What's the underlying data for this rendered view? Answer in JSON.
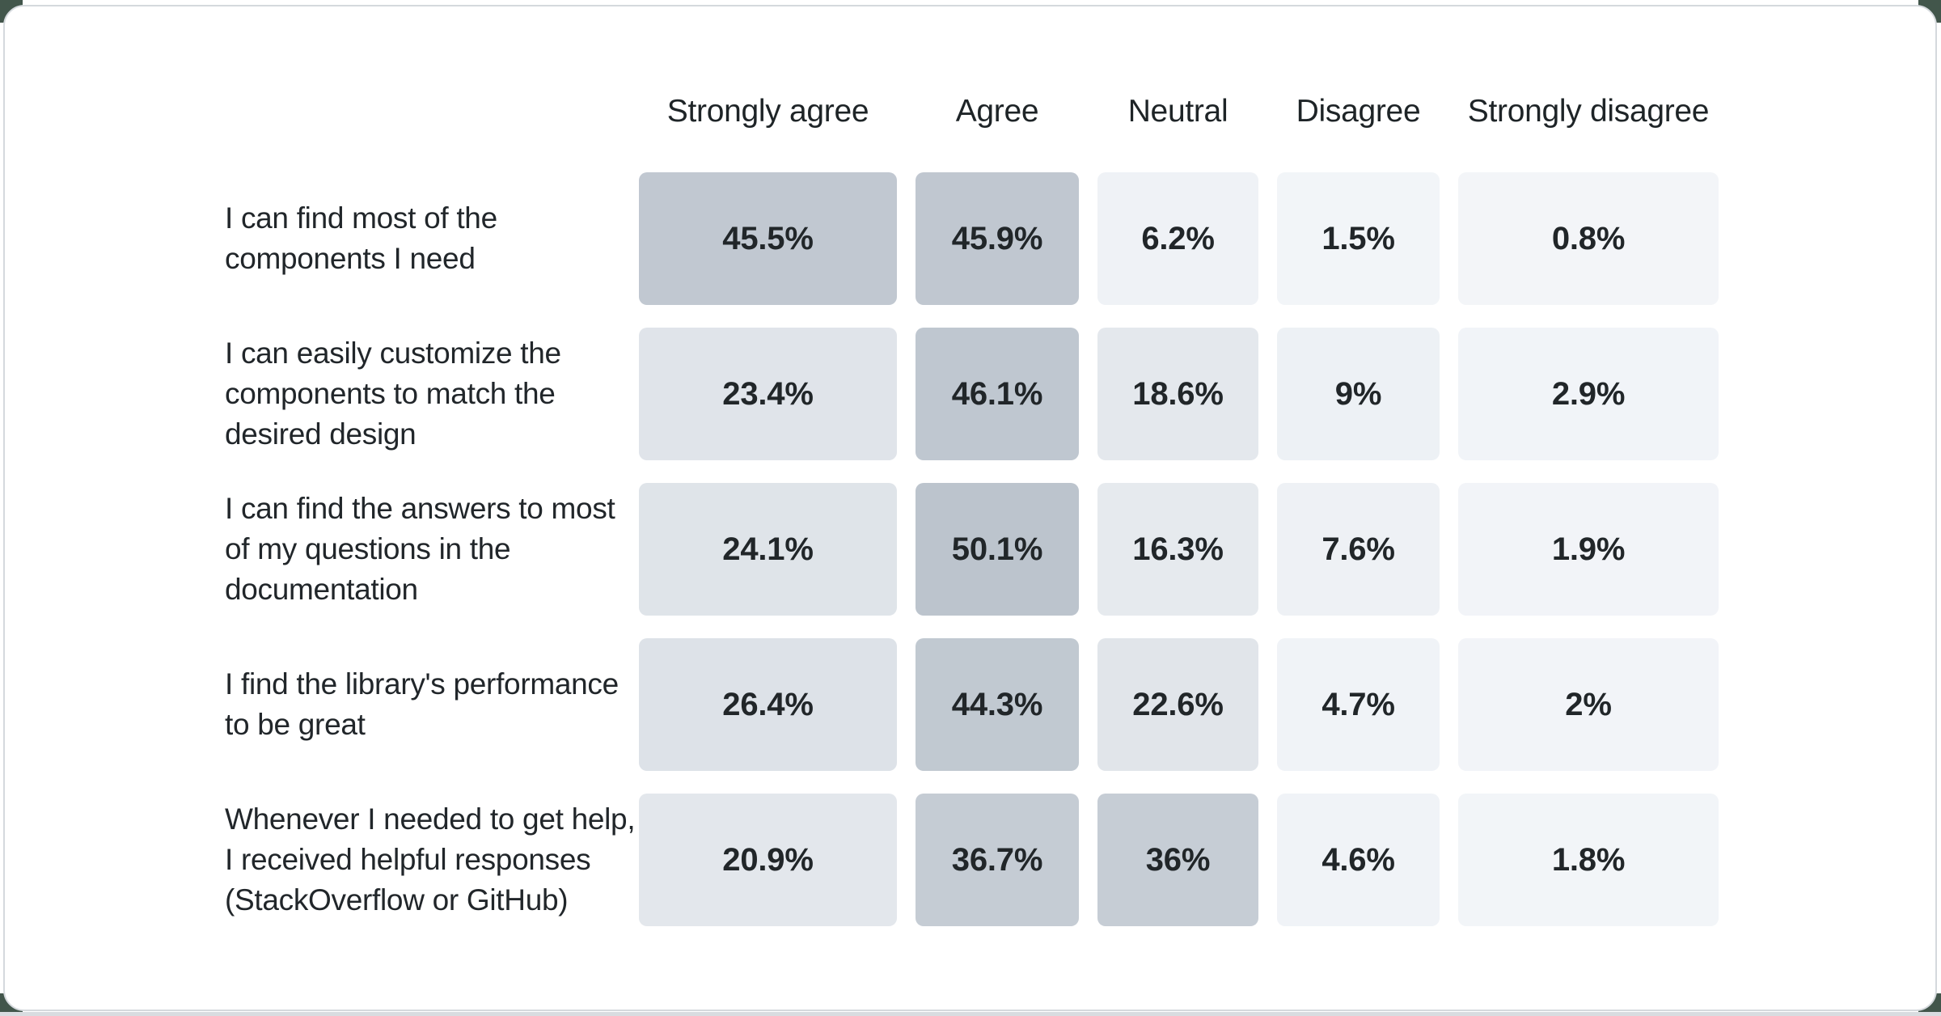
{
  "page": {
    "backdrop_color": "#42564b",
    "bottom_strip_color": "#d9dce0",
    "card_background": "#ffffff",
    "card_border_color": "#d5d9dd"
  },
  "chart_data": {
    "type": "heatmap",
    "title": "",
    "description": "Likert-scale survey results table; cell shading is proportional to the percentage value",
    "legend_position": "none",
    "grid": "off",
    "columns": [
      "Strongly agree",
      "Agree",
      "Neutral",
      "Disagree",
      "Strongly disagree"
    ],
    "scale": {
      "low_color": "#f3f5f8",
      "high_color": "#bcc4cd"
    },
    "rows": [
      {
        "label": "I can find most of the\ncomponents I need",
        "values": [
          45.5,
          45.9,
          6.2,
          1.5,
          0.8
        ],
        "display": [
          "45.5%",
          "45.9%",
          "6.2%",
          "1.5%",
          "0.8%"
        ],
        "colors": [
          "#c1c8d1",
          "#c0c7d0",
          "#eff2f6",
          "#f2f5f8",
          "#f3f5f8"
        ]
      },
      {
        "label": "I can easily customize the\ncomponents to match the\ndesired design",
        "values": [
          23.4,
          46.1,
          18.6,
          9,
          2.9
        ],
        "display": [
          "23.4%",
          "46.1%",
          "18.6%",
          "9%",
          "2.9%"
        ],
        "colors": [
          "#e0e4ea",
          "#bfc7d0",
          "#e4e8ed",
          "#edf1f5",
          "#f1f4f8"
        ]
      },
      {
        "label": "I can find the answers to most\nof my questions in the\ndocumentation",
        "values": [
          24.1,
          50.1,
          16.3,
          7.6,
          1.9
        ],
        "display": [
          "24.1%",
          "50.1%",
          "16.3%",
          "7.6%",
          "1.9%"
        ],
        "colors": [
          "#dfe4e9",
          "#bcc4cd",
          "#e6eaee",
          "#eef1f5",
          "#f2f4f8"
        ]
      },
      {
        "label": "I find the library's performance\nto be great",
        "values": [
          26.4,
          44.3,
          22.6,
          4.7,
          2
        ],
        "display": [
          "26.4%",
          "44.3%",
          "22.6%",
          "4.7%",
          "2%"
        ],
        "colors": [
          "#dde2e8",
          "#c1c9d1",
          "#e1e5ea",
          "#f0f3f7",
          "#f2f4f8"
        ]
      },
      {
        "label": "Whenever I needed to get help,\nI received helpful responses\n(StackOverflow or GitHub)",
        "values": [
          20.9,
          36.7,
          36,
          4.6,
          1.8
        ],
        "display": [
          "20.9%",
          "36.7%",
          "36%",
          "4.6%",
          "1.8%"
        ],
        "colors": [
          "#e3e7ec",
          "#c5ccd4",
          "#c6cdd5",
          "#f0f3f7",
          "#f2f5f8"
        ]
      }
    ]
  }
}
